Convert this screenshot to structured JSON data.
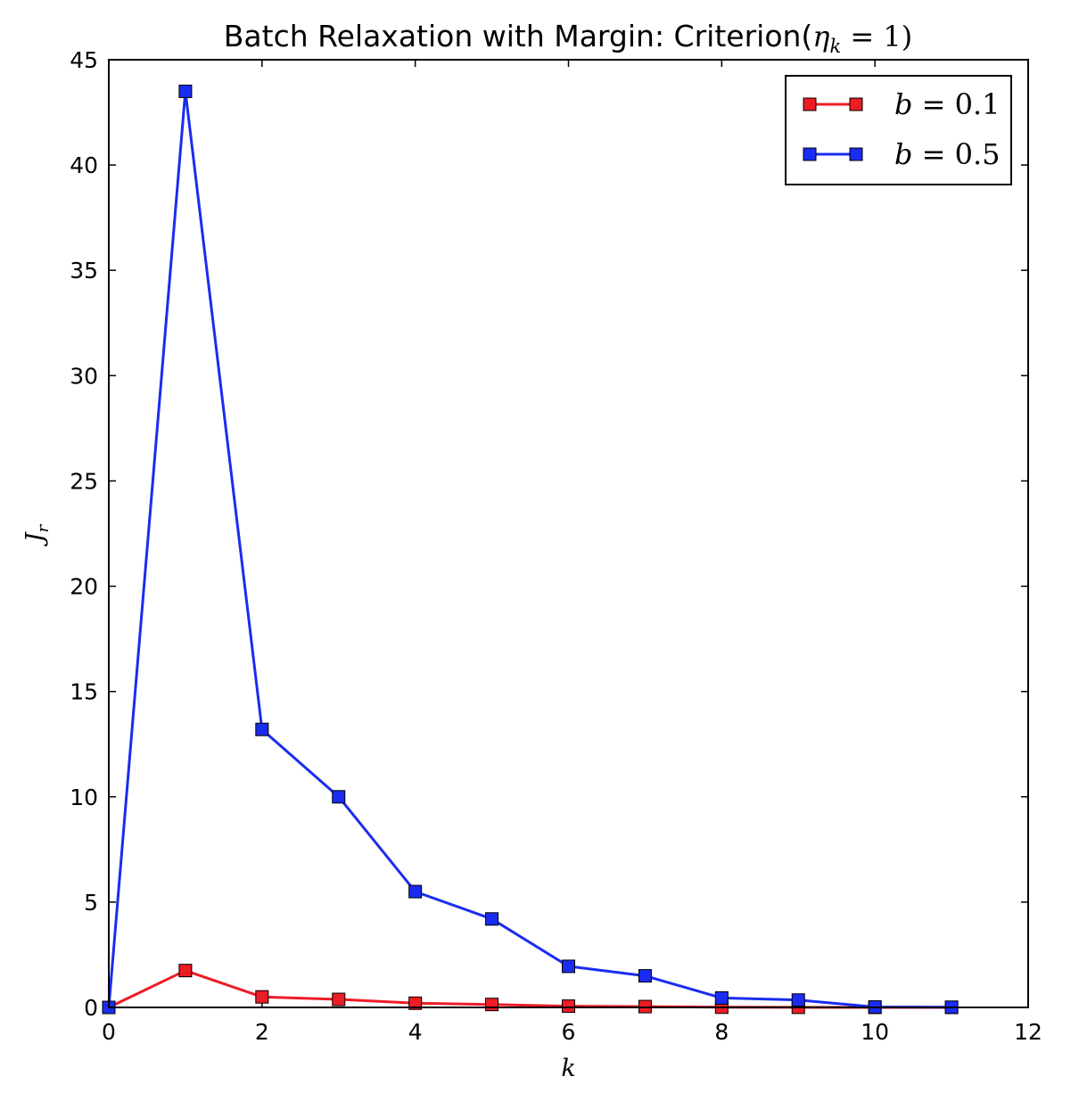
{
  "chart_data": {
    "type": "line",
    "title": {
      "prefix": "Batch Relaxation with Margin: Criterion(",
      "math_symbol": "η",
      "math_subscript": "k",
      "math_rest": " = 1)"
    },
    "xlabel": "k",
    "ylabel": {
      "symbol": "J",
      "subscript": "r"
    },
    "xlim": [
      0,
      12
    ],
    "ylim": [
      0,
      45
    ],
    "xticks": [
      0,
      2,
      4,
      6,
      8,
      10,
      12
    ],
    "yticks": [
      0,
      5,
      10,
      15,
      20,
      25,
      30,
      35,
      40,
      45
    ],
    "grid": false,
    "legend_position": "top-right",
    "series": [
      {
        "name": "b = 0.1",
        "name_var": "b",
        "name_rest": " = 0.1",
        "color": "#ee1c25",
        "marker": "square",
        "x": [
          0,
          1,
          2,
          3,
          4,
          5,
          6,
          7,
          8,
          9,
          10,
          11
        ],
        "y": [
          0,
          1.75,
          0.5,
          0.38,
          0.2,
          0.14,
          0.06,
          0.04,
          0.01,
          0.005,
          0.002,
          0.001
        ]
      },
      {
        "name": "b = 0.5",
        "name_var": "b",
        "name_rest": " = 0.5",
        "color": "#1a2cf0",
        "marker": "square",
        "x": [
          0,
          1,
          2,
          3,
          4,
          5,
          6,
          7,
          8,
          9,
          10,
          11
        ],
        "y": [
          0,
          43.5,
          13.2,
          10.0,
          5.5,
          4.2,
          1.95,
          1.5,
          0.45,
          0.35,
          0.02,
          0.01
        ]
      }
    ]
  }
}
